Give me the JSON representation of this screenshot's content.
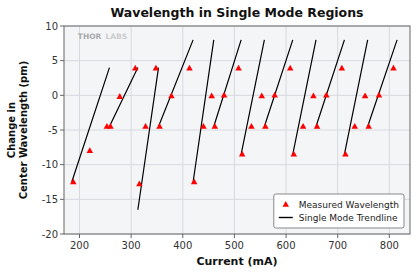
{
  "chart_data": {
    "type": "line",
    "title": "Wavelength in Single Mode Regions",
    "x_label": "Current (mA)",
    "y_label": "Change in\nCenter Wavelength (pm)",
    "xlim": [
      170,
      840
    ],
    "ylim": [
      -20,
      10
    ],
    "xticks": [
      200,
      300,
      400,
      500,
      600,
      700,
      800
    ],
    "yticks": [
      -20,
      -15,
      -10,
      -5,
      0,
      5,
      10
    ],
    "grid": true,
    "legend": "lower-right",
    "annotations": [
      "THOR",
      "LABS"
    ],
    "series": [
      {
        "name": "Measured Wavelength",
        "type": "scatter",
        "color": "#ff0000",
        "marker": "triangle",
        "x": [
          188,
          220,
          253,
          260,
          278,
          308,
          316,
          328,
          348,
          355,
          378,
          413,
          422,
          440,
          456,
          462,
          480,
          508,
          515,
          533,
          553,
          560,
          578,
          608,
          615,
          633,
          653,
          660,
          678,
          708,
          715,
          733,
          753,
          760,
          780,
          808
        ],
        "values": [
          -12.5,
          -8.0,
          -4.5,
          -4.5,
          -0.2,
          3.9,
          -12.8,
          -4.5,
          3.9,
          -4.5,
          -0.1,
          3.9,
          -12.5,
          -4.5,
          -0.1,
          -4.5,
          -0.0,
          3.9,
          -8.5,
          -4.5,
          -0.1,
          -4.5,
          -0.0,
          3.9,
          -8.5,
          -4.5,
          -0.1,
          -4.5,
          -0.0,
          3.9,
          -8.5,
          -4.5,
          -0.1,
          -4.5,
          0.0,
          3.9
        ]
      },
      {
        "name": "Single Mode Trendline",
        "type": "line",
        "color": "#000000",
        "line_style": "solid",
        "x": [
          185,
          258,
          null,
          258,
          313,
          null,
          313,
          353,
          null,
          353,
          420,
          null,
          420,
          460,
          null,
          460,
          513,
          null,
          513,
          558,
          null,
          558,
          613,
          null,
          613,
          658,
          null,
          658,
          713,
          null,
          713,
          758,
          null,
          758,
          815
        ],
        "values": [
          -12.5,
          4.0,
          null,
          -4.5,
          4.0,
          null,
          -16.5,
          4.0,
          null,
          -4.5,
          8.0,
          null,
          -12.5,
          8.0,
          null,
          -4.5,
          8.0,
          null,
          -8.5,
          8.0,
          null,
          -4.5,
          8.0,
          null,
          -8.5,
          8.0,
          null,
          -4.5,
          8.0,
          null,
          -8.5,
          8.0,
          null,
          -4.5,
          8.0
        ]
      }
    ]
  }
}
